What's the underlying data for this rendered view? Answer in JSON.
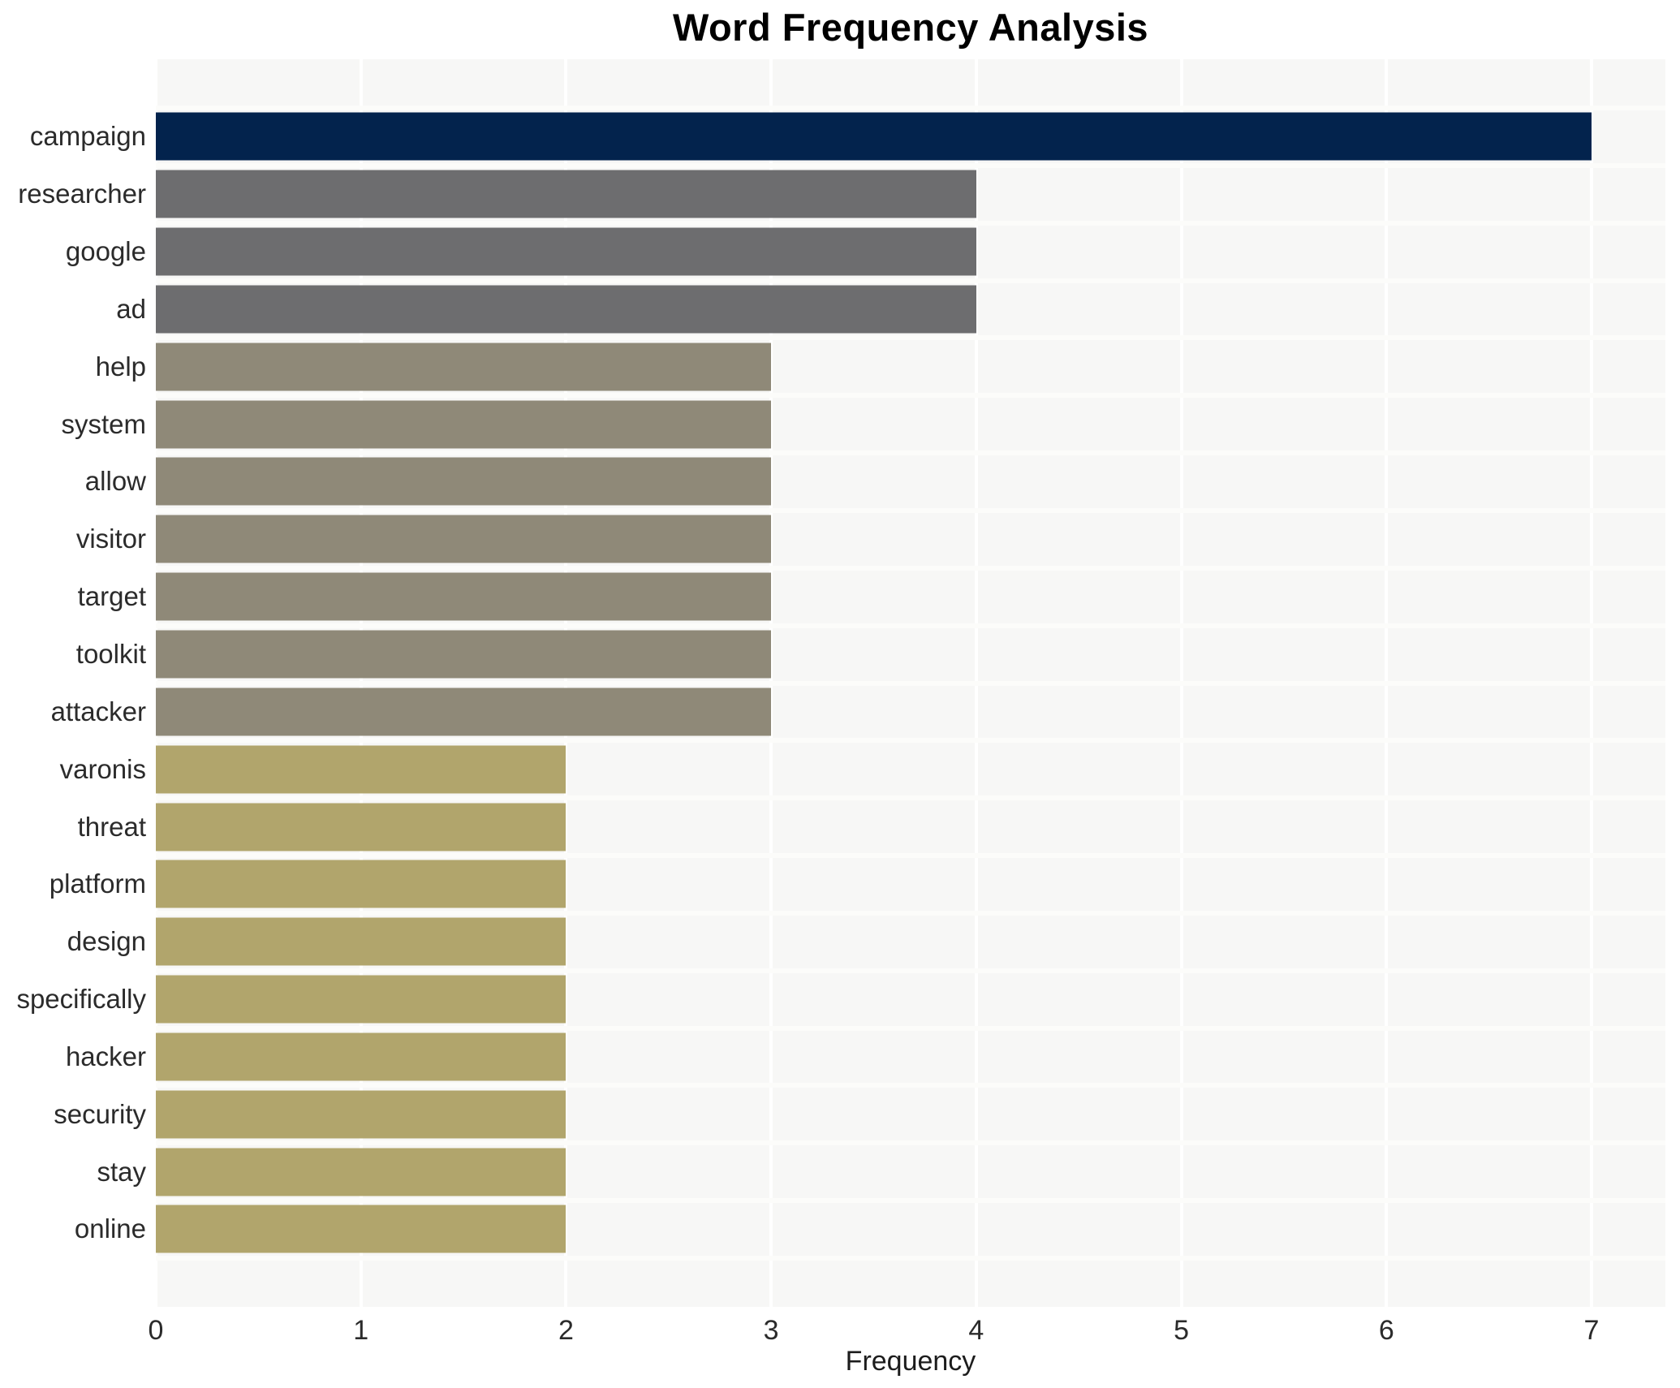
{
  "chart_data": {
    "type": "bar",
    "orientation": "horizontal",
    "title": "Word Frequency Analysis",
    "xlabel": "Frequency",
    "ylabel": "",
    "categories": [
      "campaign",
      "researcher",
      "google",
      "ad",
      "help",
      "system",
      "allow",
      "visitor",
      "target",
      "toolkit",
      "attacker",
      "varonis",
      "threat",
      "platform",
      "design",
      "specifically",
      "hacker",
      "security",
      "stay",
      "online"
    ],
    "values": [
      7,
      4,
      4,
      4,
      3,
      3,
      3,
      3,
      3,
      3,
      3,
      2,
      2,
      2,
      2,
      2,
      2,
      2,
      2,
      2
    ],
    "bar_colors": [
      "#03234d",
      "#6d6d6f",
      "#6d6d6f",
      "#6d6d6f",
      "#8f8978",
      "#8f8978",
      "#8f8978",
      "#8f8978",
      "#8f8978",
      "#8f8978",
      "#8f8978",
      "#b1a56c",
      "#b1a56c",
      "#b1a56c",
      "#b1a56c",
      "#b1a56c",
      "#b1a56c",
      "#b1a56c",
      "#b1a56c",
      "#b1a56c"
    ],
    "colors_by_value": {
      "7": "#03234d",
      "4": "#6d6d6f",
      "3": "#8f8978",
      "2": "#b1a56c"
    },
    "xticks": [
      "0",
      "1",
      "2",
      "3",
      "4",
      "5",
      "6",
      "7"
    ],
    "xlim": [
      0,
      7.36
    ],
    "grid": "vertical-white-gridlines",
    "legend": "none",
    "plot_background": "#f7f7f6",
    "grid_color": "#ffffff",
    "title_color": "#000000",
    "tick_label_color": "#2b2b2b"
  }
}
